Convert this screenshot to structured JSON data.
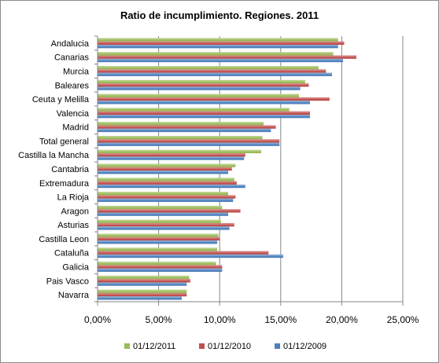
{
  "chart_data": {
    "type": "bar",
    "orientation": "horizontal",
    "title": "Ratio de incumplimiento. Regiones. 2011",
    "xlabel": "",
    "ylabel": "",
    "xlim": [
      0,
      0.25
    ],
    "x_ticks": [
      "0,00%",
      "5,00%",
      "10,00%",
      "15,00%",
      "20,00%",
      "25,00%"
    ],
    "grid": true,
    "legend_position": "bottom",
    "categories": [
      "Andalucia",
      "Canarias",
      "Murcia",
      "Baleares",
      "Ceuta y Melilla",
      "Valencia",
      "Madrid",
      "Total general",
      "Castilla la Mancha",
      "Cantabria",
      "Extremadura",
      "La Rioja",
      "Aragon",
      "Asturias",
      "Castilla Leon",
      "Cataluña",
      "Galicia",
      "Pais Vasco",
      "Navarra"
    ],
    "series": [
      {
        "name": "01/12/2011",
        "color": "#9BBB59",
        "values": [
          0.197,
          0.193,
          0.181,
          0.17,
          0.165,
          0.157,
          0.136,
          0.135,
          0.134,
          0.113,
          0.112,
          0.107,
          0.102,
          0.101,
          0.099,
          0.098,
          0.097,
          0.075,
          0.073
        ]
      },
      {
        "name": "01/12/2010",
        "color": "#C0504D",
        "values": [
          0.202,
          0.212,
          0.187,
          0.173,
          0.19,
          0.174,
          0.146,
          0.149,
          0.121,
          0.11,
          0.114,
          0.113,
          0.117,
          0.112,
          0.1,
          0.14,
          0.102,
          0.076,
          0.073
        ]
      },
      {
        "name": "01/12/2009",
        "color": "#4F81BD",
        "values": [
          0.197,
          0.201,
          0.192,
          0.166,
          0.174,
          0.174,
          0.142,
          0.149,
          0.12,
          0.107,
          0.121,
          0.111,
          0.107,
          0.108,
          0.098,
          0.152,
          0.102,
          0.073,
          0.069
        ]
      }
    ]
  }
}
